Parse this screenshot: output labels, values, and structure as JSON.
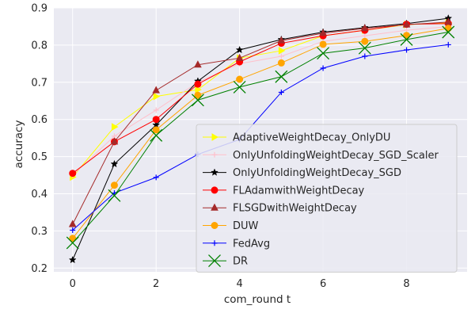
{
  "chart_data": {
    "type": "line",
    "title": "",
    "xlabel": "com_round t",
    "ylabel": "accuracy",
    "xlim": [
      -0.45,
      9.45
    ],
    "ylim": [
      0.19,
      0.9
    ],
    "x": [
      0,
      1,
      2,
      3,
      4,
      5,
      6,
      7,
      8,
      9
    ],
    "xticks": [
      "0",
      "2",
      "4",
      "6",
      "8"
    ],
    "xtick_values": [
      0,
      2,
      4,
      6,
      8
    ],
    "yticks": [
      "0.2",
      "0.3",
      "0.4",
      "0.5",
      "0.6",
      "0.7",
      "0.8",
      "0.9"
    ],
    "ytick_values": [
      0.2,
      0.3,
      0.4,
      0.5,
      0.6,
      0.7,
      0.8,
      0.9
    ],
    "grid": true,
    "background": "#eaeaf2",
    "legend_position": "lower-right",
    "series": [
      {
        "name": "AdaptiveWeightDecay_OnlyDU",
        "color": "#ffff00",
        "marker": "triangle-right",
        "values": [
          0.445,
          0.58,
          0.662,
          0.68,
          0.765,
          0.785,
          0.825,
          0.84,
          0.855,
          0.86
        ]
      },
      {
        "name": "OnlyUnfoldingWeightDecay_SGD_Scaler",
        "color": "#ffc0cb",
        "marker": "plus",
        "values": [
          0.45,
          0.555,
          0.625,
          0.7,
          0.75,
          0.77,
          0.81,
          0.825,
          0.84,
          0.85
        ]
      },
      {
        "name": "OnlyUnfoldingWeightDecay_SGD",
        "color": "#000000",
        "marker": "star",
        "values": [
          0.222,
          0.48,
          0.585,
          0.703,
          0.787,
          0.815,
          0.835,
          0.847,
          0.858,
          0.872
        ]
      },
      {
        "name": "FLAdamwithWeightDecay",
        "color": "#ff0000",
        "marker": "circle",
        "values": [
          0.455,
          0.54,
          0.6,
          0.695,
          0.755,
          0.805,
          0.825,
          0.84,
          0.856,
          0.858
        ]
      },
      {
        "name": "FLSGDwithWeightDecay",
        "color": "#a52a2a",
        "marker": "triangle-up",
        "values": [
          0.318,
          0.54,
          0.678,
          0.747,
          0.765,
          0.812,
          0.832,
          0.845,
          0.855,
          0.862
        ]
      },
      {
        "name": "DUW",
        "color": "#ffa500",
        "marker": "circle",
        "values": [
          0.28,
          0.423,
          0.572,
          0.665,
          0.708,
          0.752,
          0.802,
          0.81,
          0.826,
          0.845
        ]
      },
      {
        "name": "FedAvg",
        "color": "#0000ff",
        "marker": "plus",
        "values": [
          0.302,
          0.402,
          0.444,
          0.506,
          0.546,
          0.673,
          0.738,
          0.77,
          0.787,
          0.801
        ]
      },
      {
        "name": "DR",
        "color": "#008000",
        "marker": "x-large",
        "values": [
          0.268,
          0.395,
          0.557,
          0.652,
          0.687,
          0.715,
          0.778,
          0.792,
          0.815,
          0.835
        ]
      }
    ]
  }
}
